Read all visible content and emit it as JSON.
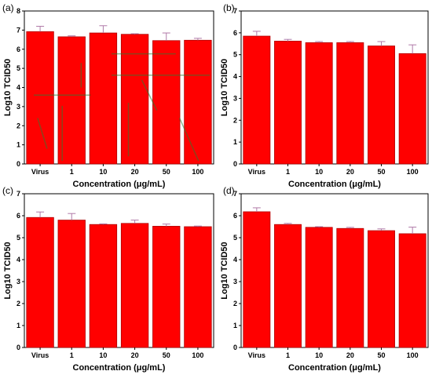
{
  "colors": {
    "bar_fill": "#ff0000",
    "bar_edge": "#b00000",
    "error_bar": "#b07aa8",
    "highlight": "#e8b8ee",
    "axis": "#000000",
    "overlay": "#2e7d32"
  },
  "chart_data": [
    {
      "type": "bar",
      "panel_label": "(a)",
      "categories": [
        "Virus",
        "1",
        "10",
        "20",
        "50",
        "100"
      ],
      "values": [
        6.92,
        6.65,
        6.85,
        6.78,
        6.45,
        6.47
      ],
      "errors": [
        0.28,
        0.05,
        0.38,
        0.03,
        0.4,
        0.1
      ],
      "xlabel": "Concentration (μg/mL)",
      "ylabel": "Log10 TCID50",
      "ylim": [
        0,
        8
      ],
      "yticks": [
        "0",
        "1",
        "2",
        "3",
        "4",
        "5",
        "6",
        "7",
        "8"
      ],
      "grid": false,
      "legend": "none"
    },
    {
      "type": "bar",
      "panel_label": "(b)",
      "categories": [
        "Virus",
        "1",
        "10",
        "20",
        "50",
        "100"
      ],
      "values": [
        5.85,
        5.62,
        5.55,
        5.55,
        5.4,
        5.05
      ],
      "errors": [
        0.22,
        0.08,
        0.05,
        0.05,
        0.2,
        0.4
      ],
      "xlabel": "Concentration (μg/mL)",
      "ylabel": "Log10 TCID50",
      "ylim": [
        0,
        7
      ],
      "yticks": [
        "0",
        "1",
        "2",
        "3",
        "4",
        "5",
        "6",
        "7"
      ],
      "grid": false,
      "legend": "none"
    },
    {
      "type": "bar",
      "panel_label": "(c)",
      "categories": [
        "Virus",
        "1",
        "10",
        "20",
        "50",
        "100"
      ],
      "values": [
        5.92,
        5.8,
        5.6,
        5.65,
        5.52,
        5.5
      ],
      "errors": [
        0.25,
        0.3,
        0.03,
        0.15,
        0.1,
        0.03
      ],
      "xlabel": "Concentration (μg/mL)",
      "ylabel": "Log10 TCID50",
      "ylim": [
        0,
        7
      ],
      "yticks": [
        "0",
        "1",
        "2",
        "3",
        "4",
        "5",
        "6",
        "7"
      ],
      "grid": false,
      "legend": "none"
    },
    {
      "type": "bar",
      "panel_label": "(d)",
      "categories": [
        "Virus",
        "1",
        "10",
        "20",
        "50",
        "100"
      ],
      "values": [
        6.18,
        5.6,
        5.47,
        5.42,
        5.32,
        5.18
      ],
      "errors": [
        0.18,
        0.05,
        0.03,
        0.05,
        0.08,
        0.3
      ],
      "xlabel": "Concentration (μg/mL)",
      "ylabel": "Log10 TCID50",
      "ylim": [
        0,
        7
      ],
      "yticks": [
        "0",
        "1",
        "2",
        "3",
        "4",
        "5",
        "6",
        "7"
      ],
      "grid": false,
      "legend": "none"
    }
  ]
}
